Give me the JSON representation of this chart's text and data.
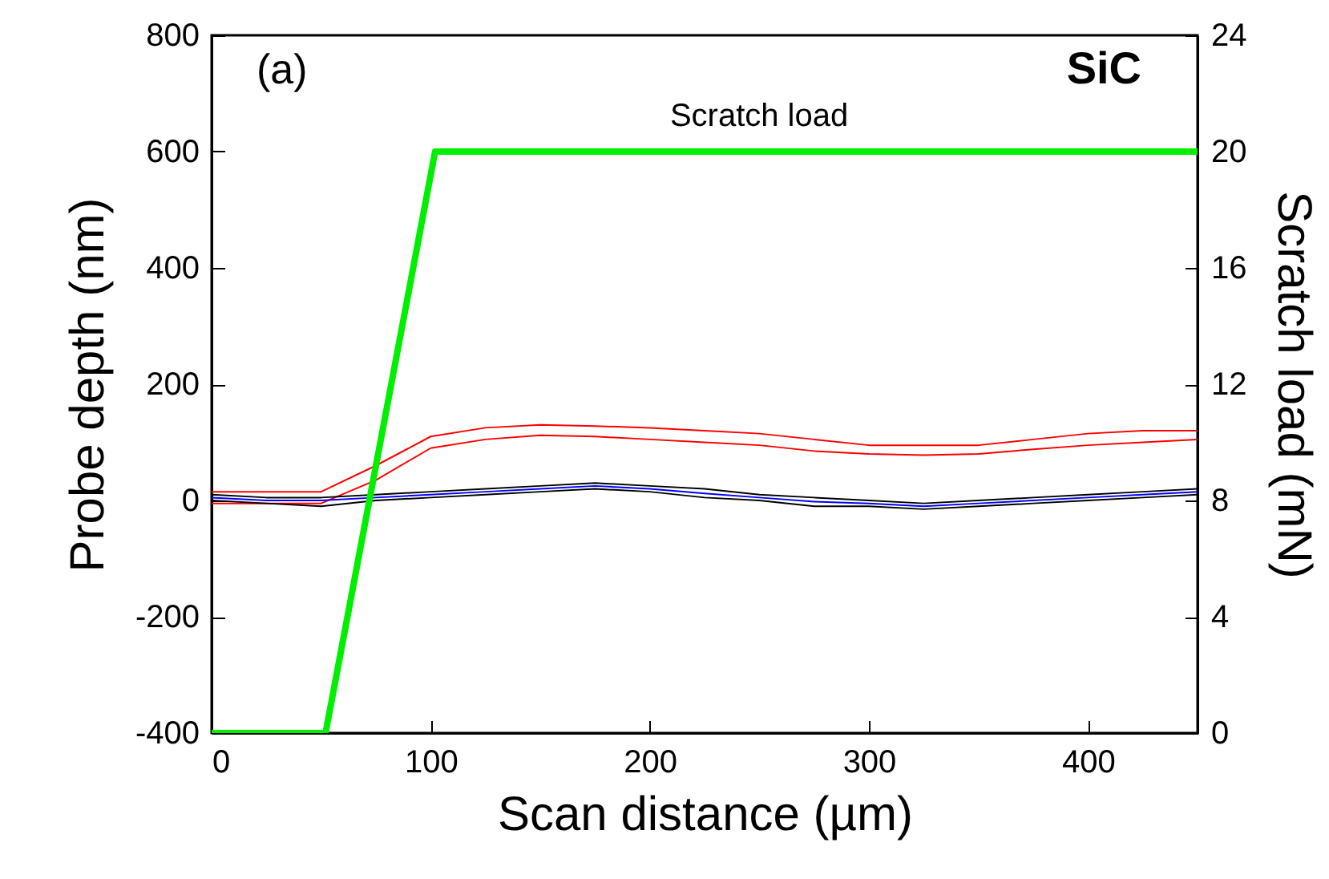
{
  "chart_data": {
    "type": "line",
    "xlabel": "Scan distance (µm)",
    "ylabel": "Probe depth (nm)",
    "y2label": "Scratch load (mN)",
    "annotations": [
      "(a)",
      "SiC"
    ],
    "x": [
      0,
      25,
      50,
      75,
      100,
      125,
      150,
      175,
      200,
      225,
      250,
      275,
      300,
      325,
      350,
      375,
      400,
      425,
      450
    ],
    "xlim": [
      0,
      450
    ],
    "xticks": [
      0,
      100,
      200,
      300,
      400
    ],
    "ylim": [
      -400,
      800
    ],
    "yticks": [
      -400,
      -200,
      0,
      200,
      400,
      600,
      800
    ],
    "y2lim": [
      0,
      24
    ],
    "y2ticks": [
      0,
      4,
      8,
      12,
      16,
      20,
      24
    ],
    "grid": false,
    "legend": false,
    "series": [
      {
        "color": "#ff0000",
        "values": [
          15,
          15,
          15,
          60,
          110,
          125,
          130,
          128,
          125,
          120,
          115,
          105,
          95,
          95,
          95,
          105,
          115,
          120,
          120
        ]
      },
      {
        "color": "#ff0000",
        "values": [
          -5,
          -5,
          -5,
          35,
          90,
          105,
          112,
          110,
          105,
          100,
          95,
          85,
          80,
          78,
          80,
          88,
          95,
          100,
          105
        ]
      },
      {
        "color": "#000000",
        "values": [
          10,
          5,
          5,
          10,
          15,
          20,
          25,
          30,
          25,
          20,
          10,
          5,
          0,
          -5,
          0,
          5,
          10,
          15,
          20
        ]
      },
      {
        "color": "#000000",
        "values": [
          0,
          -5,
          -10,
          0,
          5,
          10,
          15,
          20,
          15,
          5,
          0,
          -10,
          -10,
          -15,
          -10,
          -5,
          0,
          5,
          10
        ]
      },
      {
        "color": "#0000ff",
        "values": [
          5,
          0,
          0,
          5,
          10,
          15,
          20,
          25,
          20,
          12,
          5,
          -2,
          -5,
          -10,
          -5,
          0,
          5,
          10,
          15
        ]
      },
      {
        "name": "Scratch load",
        "color": "#00ee00",
        "axis": "y2",
        "x": [
          0,
          52,
          102,
          450
        ],
        "values": [
          0,
          0,
          20,
          20
        ]
      }
    ]
  }
}
